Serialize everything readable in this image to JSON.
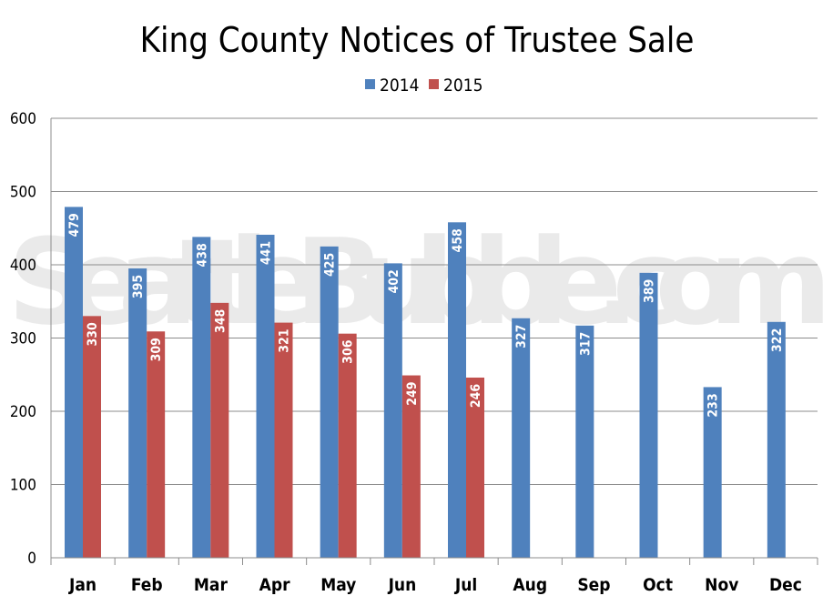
{
  "watermark": "SeattleBubble.com",
  "chart_data": {
    "type": "bar",
    "title": "King County Notices of Trustee Sale",
    "xlabel": "",
    "ylabel": "",
    "ylim": [
      0,
      600
    ],
    "yticks": [
      0,
      100,
      200,
      300,
      400,
      500,
      600
    ],
    "grid": true,
    "legend_position": "top",
    "categories": [
      "Jan",
      "Feb",
      "Mar",
      "Apr",
      "May",
      "Jun",
      "Jul",
      "Aug",
      "Sep",
      "Oct",
      "Nov",
      "Dec"
    ],
    "series": [
      {
        "name": "2014",
        "color": "#4f81bd",
        "values": [
          479,
          395,
          438,
          441,
          425,
          402,
          458,
          327,
          317,
          389,
          233,
          322
        ]
      },
      {
        "name": "2015",
        "color": "#c0504d",
        "values": [
          330,
          309,
          348,
          321,
          306,
          249,
          246,
          null,
          null,
          null,
          null,
          null
        ]
      }
    ]
  }
}
